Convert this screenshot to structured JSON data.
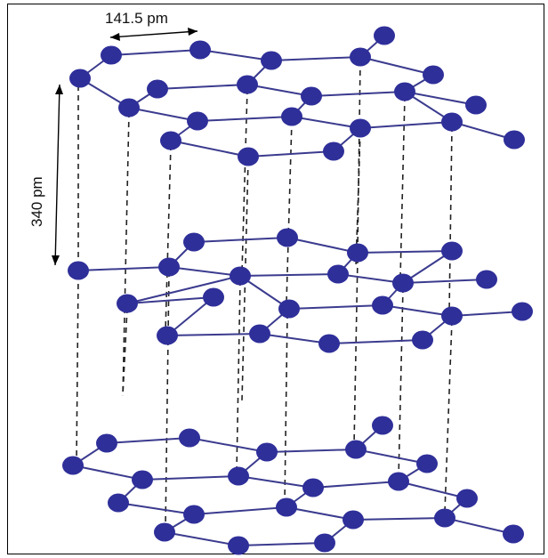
{
  "labels": {
    "bond_length": "141.5 pm",
    "layer_spacing": "340 pm"
  },
  "colors": {
    "atom": "#2f2f9a",
    "bond": "#3b3b8f",
    "dash": "#222222"
  }
}
